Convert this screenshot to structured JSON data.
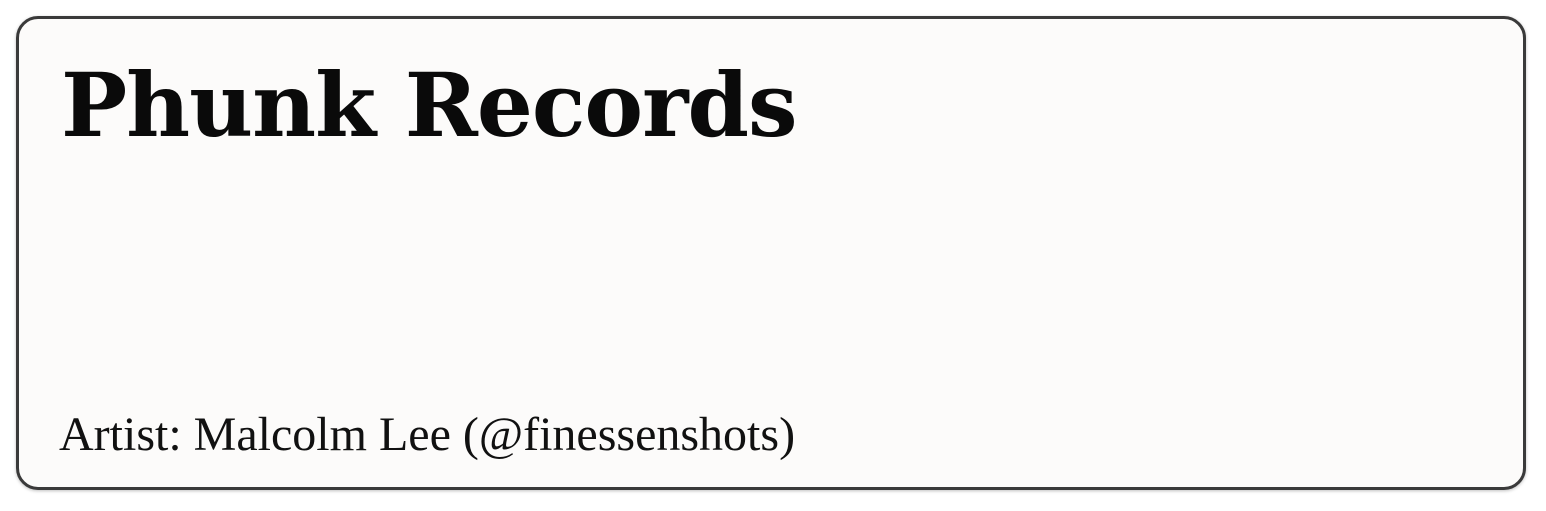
{
  "card": {
    "title": "Phunk Records",
    "artist_credit": "Artist: Malcolm Lee (@finessenshots)"
  }
}
